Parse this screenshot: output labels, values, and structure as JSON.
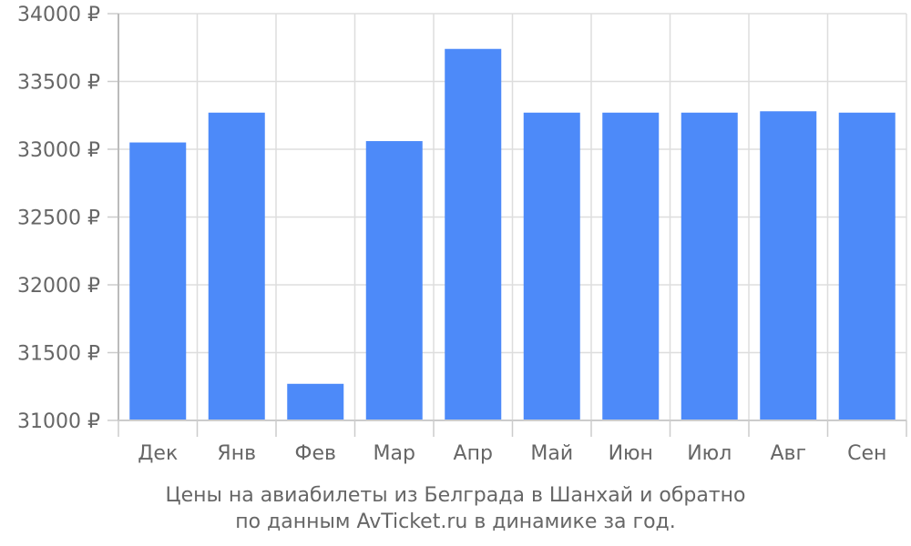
{
  "chart_data": {
    "type": "bar",
    "categories": [
      "Дек",
      "Янв",
      "Фев",
      "Мар",
      "Апр",
      "Май",
      "Июн",
      "Июл",
      "Авг",
      "Сен"
    ],
    "values": [
      33050,
      33270,
      31270,
      33060,
      33740,
      33270,
      33270,
      33270,
      33280,
      33270
    ],
    "ylim": [
      31000,
      34000
    ],
    "yticks": [
      31000,
      31500,
      32000,
      32500,
      33000,
      33500,
      34000
    ],
    "ytick_labels": [
      "31000 ₽",
      "31500 ₽",
      "32000 ₽",
      "32500 ₽",
      "33000 ₽",
      "33500 ₽",
      "34000 ₽"
    ],
    "grid": true,
    "bar_color": "#4d8af9",
    "caption": [
      "Цены на авиабилеты из Белграда в Шанхай и обратно",
      "по данным AvTicket.ru в динамике за год."
    ]
  }
}
